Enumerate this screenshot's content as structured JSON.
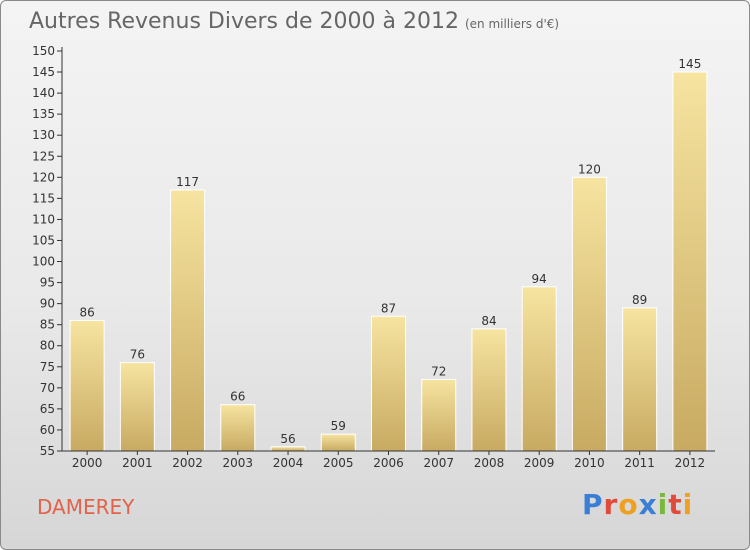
{
  "title": "Autres Revenus Divers de 2000 à 2012",
  "unit": "(en milliers d'€)",
  "commune": "DAMEREY",
  "logo": {
    "text": "Proxiti",
    "colors": [
      "#3a7fd5",
      "#e14b3b",
      "#f0a020",
      "#3a7fd5",
      "#7ab83c",
      "#e14b3b",
      "#f0a020"
    ]
  },
  "colors": {
    "bar_light": "#f6e4a0",
    "bar_dark": "#c8aa62",
    "axis": "#333333",
    "grid": "#cccccc"
  },
  "chart_data": {
    "type": "bar",
    "title": "Autres Revenus Divers de 2000 à 2012",
    "categories": [
      "2000",
      "2001",
      "2002",
      "2003",
      "2004",
      "2005",
      "2006",
      "2007",
      "2008",
      "2009",
      "2010",
      "2011",
      "2012"
    ],
    "values": [
      86,
      76,
      117,
      66,
      56,
      59,
      87,
      72,
      84,
      94,
      120,
      89,
      145
    ],
    "data_labels": [
      "86",
      "76",
      "117",
      "66",
      "56",
      "59",
      "87",
      "72",
      "84",
      "94",
      "120",
      "89",
      "145"
    ],
    "xlabel": "",
    "ylabel": "",
    "ylim": [
      55,
      150
    ],
    "yticks": [
      "55",
      "60",
      "65",
      "70",
      "75",
      "80",
      "85",
      "90",
      "95",
      "100",
      "105",
      "110",
      "115",
      "120",
      "125",
      "130",
      "135",
      "140",
      "145",
      "150"
    ],
    "grid": false,
    "legend": "none"
  }
}
